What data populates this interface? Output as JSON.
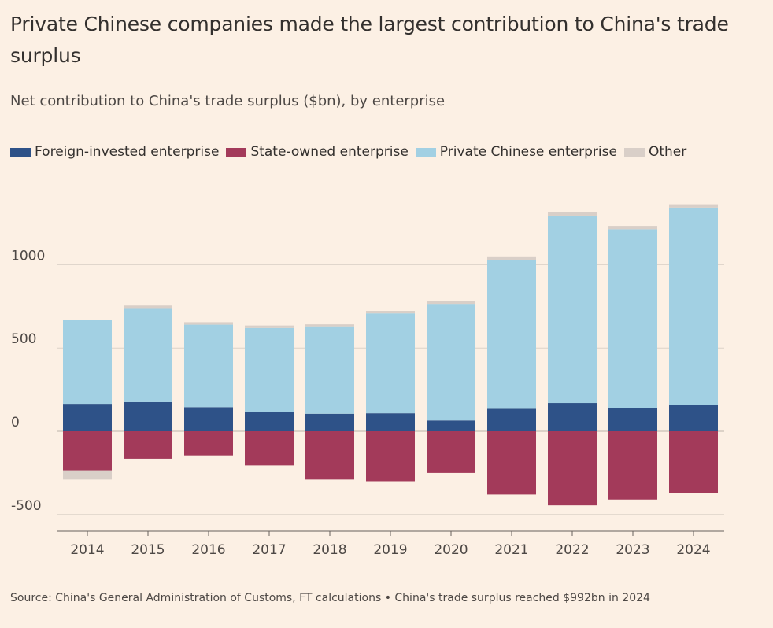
{
  "title": "Private Chinese companies made the largest contribution to China's trade surplus",
  "subtitle": "Net contribution to China's trade surplus ($bn), by enterprise",
  "source": "Source: China's General Administration of Customs, FT calculations • China's trade surplus reached $992bn in 2024",
  "legend": [
    {
      "label": "Foreign-invested enterprise",
      "color": "#2e5288"
    },
    {
      "label": "State-owned enterprise",
      "color": "#a33a5a"
    },
    {
      "label": "Private Chinese enterprise",
      "color": "#a2d0e3"
    },
    {
      "label": "Other",
      "color": "#d9cfc8"
    }
  ],
  "chart_data": {
    "type": "bar",
    "stacked": true,
    "categories": [
      "2014",
      "2015",
      "2016",
      "2017",
      "2018",
      "2019",
      "2020",
      "2021",
      "2022",
      "2023",
      "2024"
    ],
    "series": [
      {
        "name": "Foreign-invested enterprise",
        "color": "#2e5288",
        "values": [
          165,
          175,
          145,
          115,
          105,
          108,
          65,
          135,
          170,
          138,
          158
        ]
      },
      {
        "name": "State-owned enterprise",
        "color": "#a33a5a",
        "values": [
          -235,
          -165,
          -145,
          -205,
          -290,
          -300,
          -250,
          -380,
          -445,
          -410,
          -370
        ]
      },
      {
        "name": "Private Chinese enterprise",
        "color": "#a2d0e3",
        "values": [
          505,
          560,
          495,
          505,
          525,
          600,
          700,
          895,
          1125,
          1075,
          1185
        ]
      },
      {
        "name": "Other",
        "color": "#d9cfc8",
        "values": [
          -55,
          20,
          15,
          15,
          12,
          15,
          18,
          20,
          22,
          20,
          20
        ]
      }
    ],
    "yticks": [
      -500,
      0,
      500,
      1000
    ],
    "ylim": [
      -600,
      1400
    ],
    "grid": true,
    "legend_position": "top-left"
  }
}
